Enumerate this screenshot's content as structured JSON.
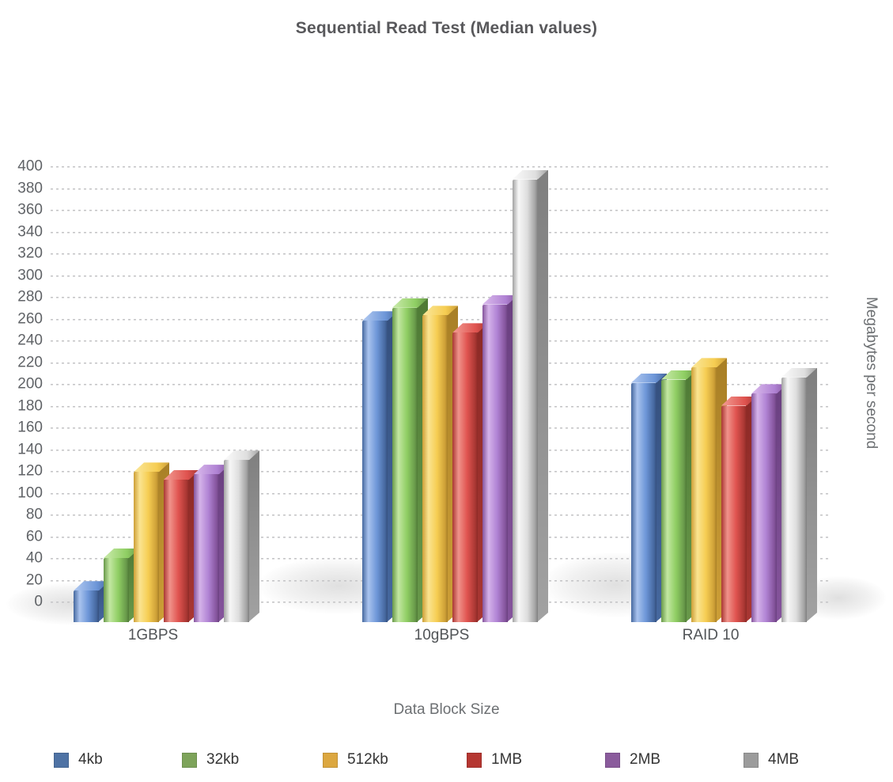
{
  "chart_data": {
    "type": "bar",
    "title": "Sequential Read Test (Median values)",
    "xlabel": "Data Block Size",
    "ylabel": "Megabytes per second",
    "categories": [
      "1GBPS",
      "10gBPS",
      "RAID 10"
    ],
    "series": [
      {
        "name": "4kb",
        "legend_color": "#4e72a4",
        "bar": {
          "light": "#a9c3ee",
          "mid": "#6d96d8",
          "deep": "#46689f",
          "dark": "#35507e"
        },
        "values": [
          10,
          258,
          201
        ]
      },
      {
        "name": "32kb",
        "legend_color": "#7da35a",
        "bar": {
          "light": "#c3e7a2",
          "mid": "#8fce63",
          "deep": "#68994a",
          "dark": "#4f7a36"
        },
        "values": [
          40,
          270,
          204
        ]
      },
      {
        "name": "512kb",
        "legend_color": "#dca73f",
        "bar": {
          "light": "#fae491",
          "mid": "#f6cd52",
          "deep": "#cd9f37",
          "dark": "#a87f26"
        },
        "values": [
          119,
          263,
          215
        ]
      },
      {
        "name": "1MB",
        "legend_color": "#b53631",
        "bar": {
          "light": "#f0938b",
          "mid": "#e05450",
          "deep": "#a93733",
          "dark": "#8c2a26"
        },
        "values": [
          112,
          247,
          180
        ]
      },
      {
        "name": "2MB",
        "legend_color": "#8a5b9c",
        "bar": {
          "light": "#d5b3e9",
          "mid": "#b083d4",
          "deep": "#85549c",
          "dark": "#6a4080"
        },
        "values": [
          117,
          273,
          191
        ]
      },
      {
        "name": "4MB",
        "legend_color": "#9b9b9b",
        "bar": {
          "light": "#f7f7f7",
          "mid": "#dedede",
          "deep": "#a2a2a2",
          "dark": "#7f7f7f"
        },
        "values": [
          130,
          388,
          206
        ]
      }
    ],
    "ylim": [
      0,
      400
    ],
    "ytick_step": 20,
    "grid": true,
    "legend_position": "bottom",
    "tick_color": "#606367",
    "grid_color": "#c6c6c8"
  }
}
